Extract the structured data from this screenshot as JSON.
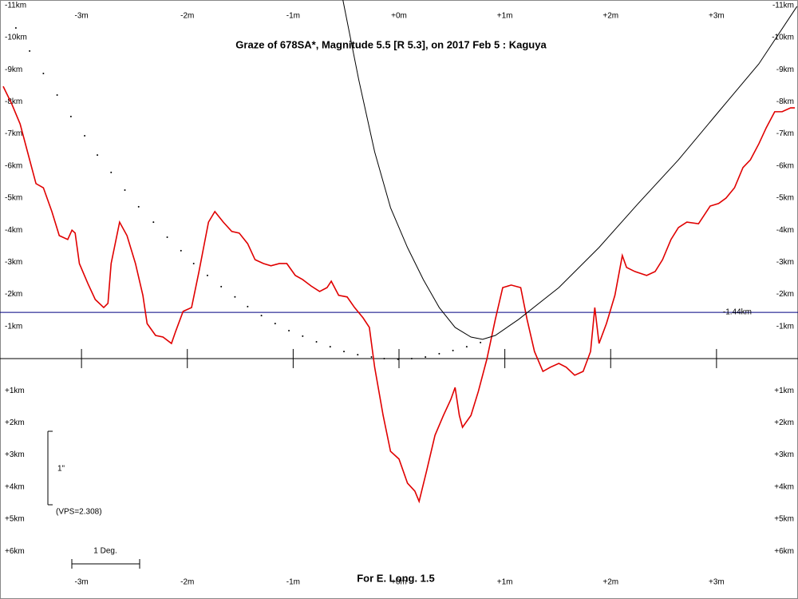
{
  "chart_data": {
    "type": "line",
    "title": "Graze of  678SA*,  Magnitude 5.5 [R 5.3],  on 2017 Feb  5  :  Kaguya",
    "footer": "For E. Long. 1.5",
    "scale_note": "1\"",
    "vps_note": "(VPS=2.308)",
    "degree_note": "1 Deg.",
    "invert_y": true,
    "xlim": [
      -3.77,
      3.77
    ],
    "ylim": [
      -11.17,
      7.49
    ],
    "xticks": [
      {
        "value": -3,
        "label": "-3m"
      },
      {
        "value": -2,
        "label": "-2m"
      },
      {
        "value": -1,
        "label": "-1m"
      },
      {
        "value": 0,
        "label": "+0m"
      },
      {
        "value": 1,
        "label": "+1m"
      },
      {
        "value": 2,
        "label": "+2m"
      },
      {
        "value": 3,
        "label": "+3m"
      }
    ],
    "yticks": [
      {
        "value": -11,
        "label": "-11km"
      },
      {
        "value": -10,
        "label": "-10km"
      },
      {
        "value": -9,
        "label": "-9km"
      },
      {
        "value": -8,
        "label": "-8km"
      },
      {
        "value": -7,
        "label": "-7km"
      },
      {
        "value": -6,
        "label": "-6km"
      },
      {
        "value": -5,
        "label": "-5km"
      },
      {
        "value": -4,
        "label": "-4km"
      },
      {
        "value": -3,
        "label": "-3km"
      },
      {
        "value": -2,
        "label": "-2km"
      },
      {
        "value": -1,
        "label": "-1km"
      },
      {
        "value": 1,
        "label": "+1km"
      },
      {
        "value": 2,
        "label": "+2km"
      },
      {
        "value": 3,
        "label": "+3km"
      },
      {
        "value": 4,
        "label": "+4km"
      },
      {
        "value": 5,
        "label": "+5km"
      },
      {
        "value": 6,
        "label": "+6km"
      }
    ],
    "limit_line": {
      "value": -1.44,
      "label": "-1.44km",
      "color": "#000080"
    },
    "series": [
      {
        "color": "#e00000",
        "style": "line",
        "x": [
          -3.74,
          -3.66,
          -3.58,
          -3.51,
          -3.43,
          -3.36,
          -3.28,
          -3.21,
          -3.13,
          -3.09,
          -3.06,
          -3.02,
          -2.94,
          -2.87,
          -2.79,
          -2.75,
          -2.72,
          -2.64,
          -2.57,
          -2.49,
          -2.42,
          -2.38,
          -2.3,
          -2.23,
          -2.15,
          -2.11,
          -2.04,
          -1.96,
          -1.89,
          -1.81,
          -1.8,
          -1.74,
          -1.66,
          -1.58,
          -1.51,
          -1.43,
          -1.36,
          -1.28,
          -1.21,
          -1.13,
          -1.06,
          -0.98,
          -0.91,
          -0.83,
          -0.75,
          -0.68,
          -0.64,
          -0.57,
          -0.49,
          -0.42,
          -0.34,
          -0.28,
          -0.23,
          -0.15,
          -0.08,
          0,
          0.08,
          0.15,
          0.19,
          0.26,
          0.34,
          0.42,
          0.49,
          0.53,
          0.57,
          0.6,
          0.68,
          0.75,
          0.83,
          0.91,
          0.98,
          1.06,
          1.15,
          1.21,
          1.28,
          1.36,
          1.43,
          1.51,
          1.58,
          1.66,
          1.74,
          1.81,
          1.85,
          1.89,
          1.96,
          2.04,
          2.11,
          2.15,
          2.23,
          2.34,
          2.42,
          2.49,
          2.57,
          2.64,
          2.72,
          2.83,
          2.94,
          3.02,
          3.09,
          3.17,
          3.25,
          3.32,
          3.4,
          3.47,
          3.55,
          3.62,
          3.7,
          3.74
        ],
        "values": [
          -8.48,
          -7.94,
          -7.31,
          -6.44,
          -5.45,
          -5.32,
          -4.58,
          -3.83,
          -3.71,
          -4.0,
          -3.91,
          -2.96,
          -2.34,
          -1.84,
          -1.59,
          -1.72,
          -2.96,
          -4.25,
          -3.83,
          -2.96,
          -1.97,
          -1.09,
          -0.72,
          -0.67,
          -0.47,
          -0.85,
          -1.47,
          -1.59,
          -2.71,
          -4.08,
          -4.25,
          -4.58,
          -4.25,
          -3.96,
          -3.91,
          -3.58,
          -3.08,
          -2.96,
          -2.89,
          -2.96,
          -2.96,
          -2.59,
          -2.46,
          -2.26,
          -2.09,
          -2.21,
          -2.41,
          -1.97,
          -1.92,
          -1.59,
          -1.27,
          -0.97,
          0.27,
          1.77,
          2.89,
          3.13,
          3.88,
          4.13,
          4.45,
          3.51,
          2.39,
          1.77,
          1.27,
          0.9,
          1.77,
          2.14,
          1.77,
          1.02,
          0.02,
          -1.22,
          -2.21,
          -2.29,
          -2.21,
          -1.22,
          -0.22,
          0.4,
          0.27,
          0.15,
          0.27,
          0.52,
          0.4,
          -0.22,
          -1.59,
          -0.47,
          -1.09,
          -1.97,
          -3.21,
          -2.84,
          -2.71,
          -2.59,
          -2.71,
          -3.08,
          -3.71,
          -4.08,
          -4.25,
          -4.2,
          -4.75,
          -4.83,
          -5.0,
          -5.32,
          -5.95,
          -6.19,
          -6.69,
          -7.19,
          -7.69,
          -7.69,
          -7.81,
          -7.81
        ]
      },
      {
        "color": "#000000",
        "style": "line",
        "x": [
          -0.53,
          -0.38,
          -0.23,
          -0.08,
          0.08,
          0.23,
          0.38,
          0.53,
          0.68,
          0.79,
          0.91,
          1.13,
          1.51,
          1.89,
          2.26,
          2.64,
          3.02,
          3.4,
          3.76
        ],
        "values": [
          -11.17,
          -8.68,
          -6.44,
          -4.7,
          -3.46,
          -2.46,
          -1.59,
          -0.97,
          -0.67,
          -0.6,
          -0.72,
          -1.22,
          -2.21,
          -3.46,
          -4.83,
          -6.19,
          -7.69,
          -9.18,
          -10.97
        ]
      },
      {
        "color": "#000000",
        "style": "dots",
        "x": [
          -3.62,
          -3.49,
          -3.36,
          -3.23,
          -3.1,
          -2.97,
          -2.85,
          -2.72,
          -2.59,
          -2.46,
          -2.32,
          -2.19,
          -2.06,
          -1.94,
          -1.81,
          -1.68,
          -1.55,
          -1.43,
          -1.3,
          -1.17,
          -1.04,
          -0.91,
          -0.78,
          -0.65,
          -0.52,
          -0.39,
          -0.26,
          -0.14,
          -0.01,
          0.12,
          0.25,
          0.38,
          0.51,
          0.64,
          0.77
        ],
        "values": [
          -10.3,
          -9.58,
          -8.88,
          -8.21,
          -7.54,
          -6.94,
          -6.34,
          -5.8,
          -5.25,
          -4.73,
          -4.25,
          -3.78,
          -3.36,
          -2.96,
          -2.59,
          -2.24,
          -1.92,
          -1.62,
          -1.34,
          -1.09,
          -0.87,
          -0.7,
          -0.52,
          -0.37,
          -0.22,
          -0.12,
          -0.05,
          0,
          0.02,
          0,
          -0.05,
          -0.15,
          -0.25,
          -0.37,
          -0.5
        ]
      }
    ]
  }
}
